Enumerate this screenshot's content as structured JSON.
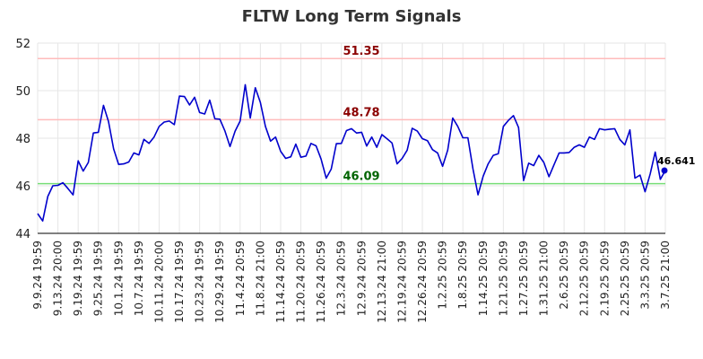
{
  "chart_data": {
    "type": "line",
    "title": "FLTW Long Term Signals",
    "xlabel": "",
    "ylabel": "",
    "ylim": [
      44,
      52
    ],
    "y_ticks": [
      "44",
      "46",
      "48",
      "50",
      "52"
    ],
    "y_tick_values": [
      44,
      46,
      48,
      50,
      52
    ],
    "x_ticks": [
      "9.9.24 19:59",
      "9.13.24 20:00",
      "9.19.24 19:59",
      "9.25.24 19:59",
      "10.1.24 19:59",
      "10.7.24 19:59",
      "10.11.24 20:00",
      "10.17.24 19:59",
      "10.23.24 19:59",
      "10.29.24 19:59",
      "11.4.24 20:59",
      "11.8.24 21:00",
      "11.14.24 20:59",
      "11.20.24 20:59",
      "11.26.24 20:59",
      "12.3.24 20:59",
      "12.9.24 20:59",
      "12.13.24 21:00",
      "12.19.24 20:59",
      "12.26.24 20:59",
      "1.2.25 20:59",
      "1.8.25 20:59",
      "1.14.25 20:59",
      "1.21.25 20:59",
      "1.27.25 20:59",
      "1.31.25 21:00",
      "2.6.25 20:59",
      "2.12.25 20:59",
      "2.19.25 20:59",
      "2.25.25 20:59",
      "3.3.25 20:59",
      "3.7.25 21:00"
    ],
    "grid": true,
    "reference_lines": [
      {
        "value": 51.35,
        "label": "51.35",
        "color": "#ffbbbb",
        "label_color": "#8b0000"
      },
      {
        "value": 48.78,
        "label": "48.78",
        "color": "#ffbbbb",
        "label_color": "#8b0000"
      },
      {
        "value": 46.09,
        "label": "46.09",
        "color": "#77dd77",
        "label_color": "#006400"
      }
    ],
    "last_value_label": "46.641",
    "series": [
      {
        "color": "#0000cc",
        "values": [
          44.83,
          44.52,
          45.55,
          46.0,
          46.02,
          46.13,
          45.88,
          45.62,
          47.05,
          46.62,
          46.98,
          48.22,
          48.25,
          49.38,
          48.7,
          47.55,
          46.9,
          46.92,
          47.0,
          47.38,
          47.3,
          47.95,
          47.78,
          48.05,
          48.5,
          48.68,
          48.72,
          48.57,
          49.77,
          49.75,
          49.4,
          49.72,
          49.08,
          49.02,
          49.6,
          48.82,
          48.8,
          48.3,
          47.65,
          48.3,
          48.72,
          50.25,
          48.85,
          50.12,
          49.5,
          48.5,
          47.88,
          48.05,
          47.45,
          47.15,
          47.22,
          47.75,
          47.2,
          47.25,
          47.78,
          47.68,
          47.12,
          46.32,
          46.7,
          47.77,
          47.78,
          48.32,
          48.4,
          48.22,
          48.25,
          47.67,
          48.05,
          47.62,
          48.15,
          47.98,
          47.8,
          46.92,
          47.15,
          47.5,
          48.42,
          48.3,
          47.98,
          47.9,
          47.52,
          47.38,
          46.82,
          47.5,
          48.85,
          48.5,
          48.02,
          48.02,
          46.7,
          45.62,
          46.4,
          46.92,
          47.28,
          47.35,
          48.5,
          48.75,
          48.95,
          48.45,
          46.22,
          46.95,
          46.85,
          47.28,
          46.98,
          46.38,
          46.88,
          47.38,
          47.38,
          47.4,
          47.62,
          47.72,
          47.62,
          48.05,
          47.95,
          48.4,
          48.35,
          48.38,
          48.4,
          47.95,
          47.72,
          48.35,
          46.32,
          46.45,
          45.75,
          46.5,
          47.42,
          46.27,
          46.641
        ]
      }
    ]
  }
}
